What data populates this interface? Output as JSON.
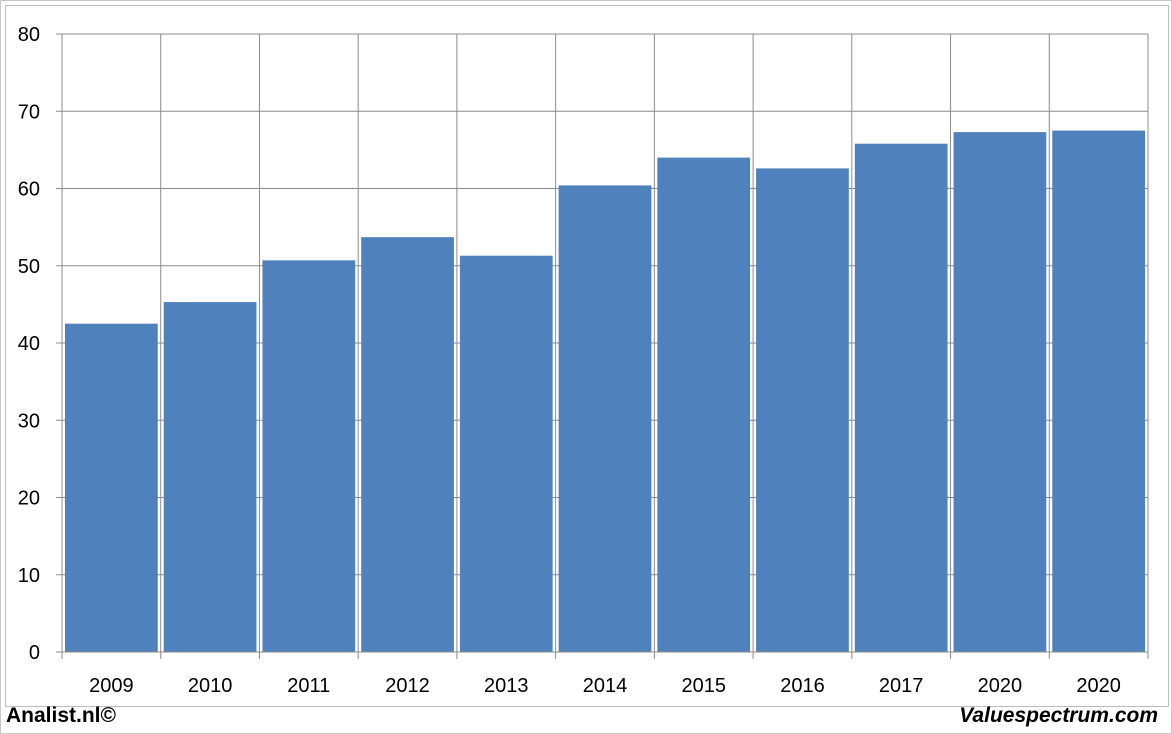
{
  "chart_data": {
    "type": "bar",
    "categories": [
      "2009",
      "2010",
      "2011",
      "2012",
      "2013",
      "2014",
      "2015",
      "2016",
      "2017",
      "2020",
      "2020"
    ],
    "values": [
      42.5,
      45.3,
      50.7,
      53.7,
      51.3,
      60.4,
      64.0,
      62.6,
      65.8,
      67.3,
      67.5
    ],
    "title": "",
    "xlabel": "",
    "ylabel": "",
    "ylim": [
      0,
      80
    ],
    "yticks": [
      "0",
      "10",
      "20",
      "30",
      "40",
      "50",
      "60",
      "70",
      "80"
    ],
    "grid": true,
    "bar_color": "#4f81bd"
  },
  "footer": {
    "left_text": "Analist.nl©",
    "right_text": "Valuespectrum.com"
  }
}
